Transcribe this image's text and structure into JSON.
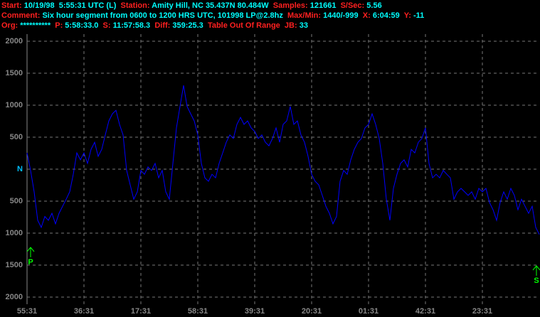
{
  "header": [
    [
      {
        "label": "Start:",
        "value": "10/19/98  5:55:31 UTC (L)"
      },
      {
        "label": "Station:",
        "value": "Amity Hill, NC 35.437N 80.484W"
      },
      {
        "label": "Samples:",
        "value": "121661"
      },
      {
        "label": "S/Sec:",
        "value": "5.56"
      }
    ],
    [
      {
        "label": "Comment:",
        "value": "Six hour segment from 0600 to 1200 HRS UTC, 101998 LP@2.8hz"
      },
      {
        "label": "Max/Min:",
        "value": "1440/-999"
      },
      {
        "label": "X:",
        "value": "6:04:59"
      },
      {
        "label": "Y:",
        "value": "-11"
      }
    ],
    [
      {
        "label": "Org:",
        "value": "**********"
      },
      {
        "label": "P:",
        "value": "5:58:33.0"
      },
      {
        "label": "S:",
        "value": "11:57:58.3"
      },
      {
        "label": "Diff:",
        "value": "359:25.3"
      },
      {
        "label": "Table Out Of Range"
      },
      {
        "label": "JB:",
        "value": "33"
      }
    ]
  ],
  "chart_data": {
    "type": "line",
    "x_labels": [
      "55:31",
      "36:31",
      "17:31",
      "58:31",
      "39:31",
      "20:31",
      "01:31",
      "42:31",
      "23:31"
    ],
    "series": [
      {
        "color": "#0000ff",
        "values": [
          255,
          -20,
          -355,
          -800,
          -910,
          -740,
          -800,
          -690,
          -855,
          -690,
          -580,
          -470,
          -355,
          -80,
          255,
          145,
          255,
          90,
          310,
          420,
          200,
          310,
          535,
          755,
          865,
          920,
          700,
          535,
          -20,
          -245,
          -470,
          -355,
          -20,
          -80,
          35,
          -20,
          90,
          -135,
          -20,
          -355,
          -470,
          90,
          645,
          980,
          1310,
          980,
          865,
          755,
          535,
          90,
          -135,
          -190,
          -80,
          -135,
          90,
          255,
          420,
          535,
          480,
          700,
          810,
          700,
          755,
          645,
          590,
          480,
          535,
          420,
          365,
          480,
          645,
          420,
          700,
          755,
          980,
          700,
          755,
          535,
          420,
          200,
          -80,
          -190,
          -245,
          -410,
          -580,
          -690,
          -855,
          -740,
          -190,
          -20,
          -80,
          145,
          310,
          420,
          480,
          645,
          700,
          865,
          700,
          480,
          90,
          -470,
          -800,
          -300,
          -80,
          90,
          145,
          35,
          310,
          255,
          420,
          480,
          645,
          90,
          -135,
          -80,
          -135,
          -20,
          -80,
          -135,
          -470,
          -355,
          -300,
          -355,
          -410,
          -355,
          -470,
          -300,
          -355,
          -300,
          -520,
          -635,
          -800,
          -520,
          -355,
          -470,
          -300,
          -410,
          -635,
          -470,
          -580,
          -690,
          -580,
          -910,
          -1020
        ]
      }
    ],
    "ylim": [
      -2000,
      2000
    ],
    "yticks": [
      2000,
      1500,
      1000,
      500,
      {
        "value": 0,
        "label": "N"
      },
      {
        "value": -500,
        "label": "500"
      },
      {
        "value": -1000,
        "label": "1000"
      },
      {
        "value": -1500,
        "label": "1500"
      },
      {
        "value": -2000,
        "label": "2000"
      }
    ],
    "grid": true,
    "annotations": [
      {
        "text": "P",
        "color": "#00ff00"
      },
      {
        "text": "S",
        "color": "#00ff00"
      }
    ]
  }
}
